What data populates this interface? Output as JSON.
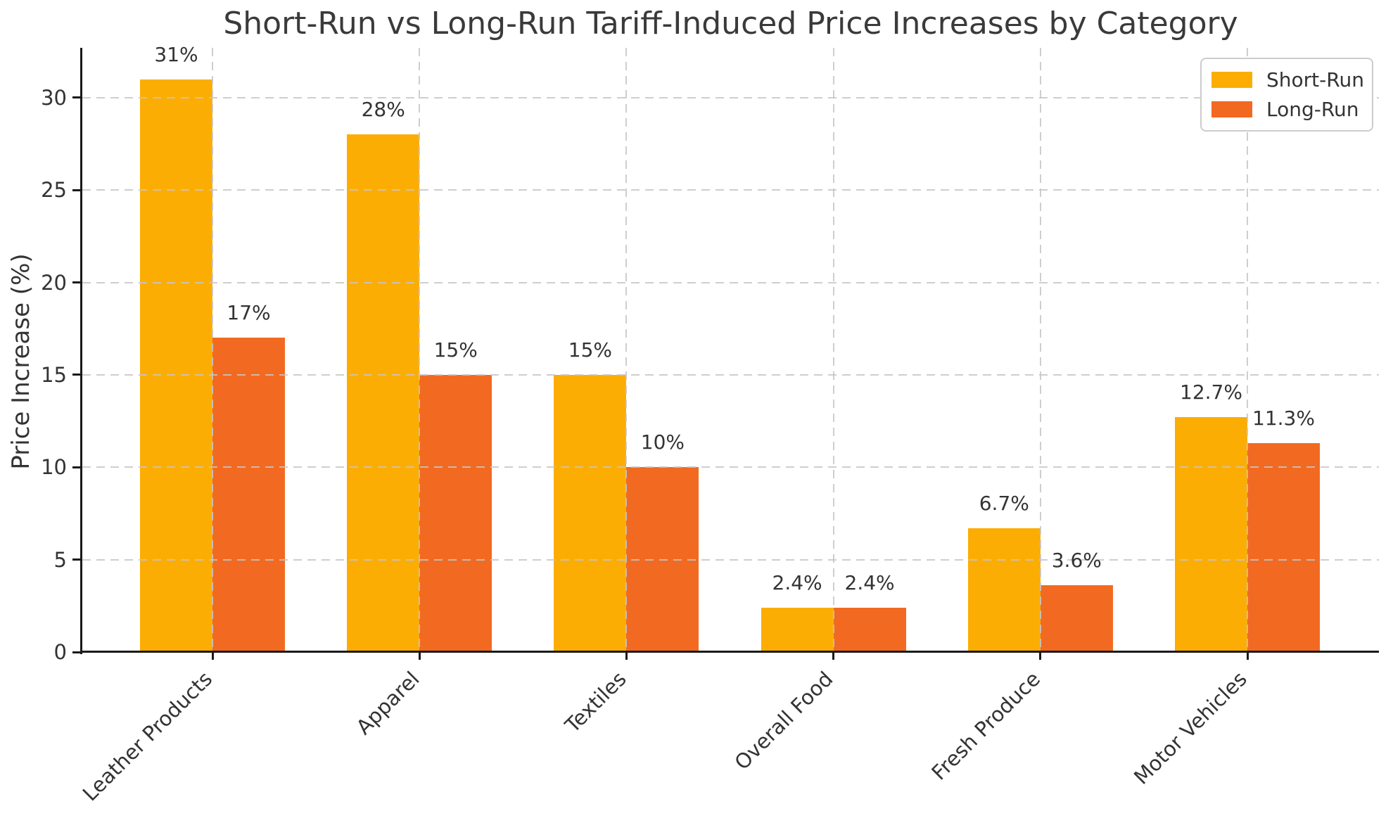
{
  "figure": {
    "background": "#FFFFFF",
    "text_color": "#333333",
    "axis_color": "#1A1A1A",
    "grid_color": "#C6C6C6"
  },
  "chart_data": {
    "type": "bar",
    "title": "Short-Run vs Long-Run Tariff-Induced Price Increases by Category",
    "xlabel": "",
    "ylabel": "Price Increase (%)",
    "categories": [
      "Leather Products",
      "Apparel",
      "Textiles",
      "Overall Food",
      "Fresh Produce",
      "Motor Vehicles"
    ],
    "series": [
      {
        "name": "Short-Run",
        "color": "#FCAD03",
        "values": [
          31,
          28,
          15,
          2.4,
          6.7,
          12.7
        ],
        "value_labels": [
          "31%",
          "28%",
          "15%",
          "2.4%",
          "6.7%",
          "12.7%"
        ]
      },
      {
        "name": "Long-Run",
        "color": "#F26A21",
        "values": [
          17,
          15,
          10,
          2.4,
          3.6,
          11.3
        ],
        "value_labels": [
          "17%",
          "15%",
          "10%",
          "2.4%",
          "3.6%",
          "11.3%"
        ]
      }
    ],
    "yticks": [
      0,
      5,
      10,
      15,
      20,
      25,
      30
    ],
    "ylim": [
      0,
      32.7
    ],
    "grid": {
      "style": "dashed",
      "axes": "both",
      "above_bars": true
    },
    "legend": {
      "position": "upper-right",
      "entries": [
        "Short-Run",
        "Long-Run"
      ]
    }
  }
}
